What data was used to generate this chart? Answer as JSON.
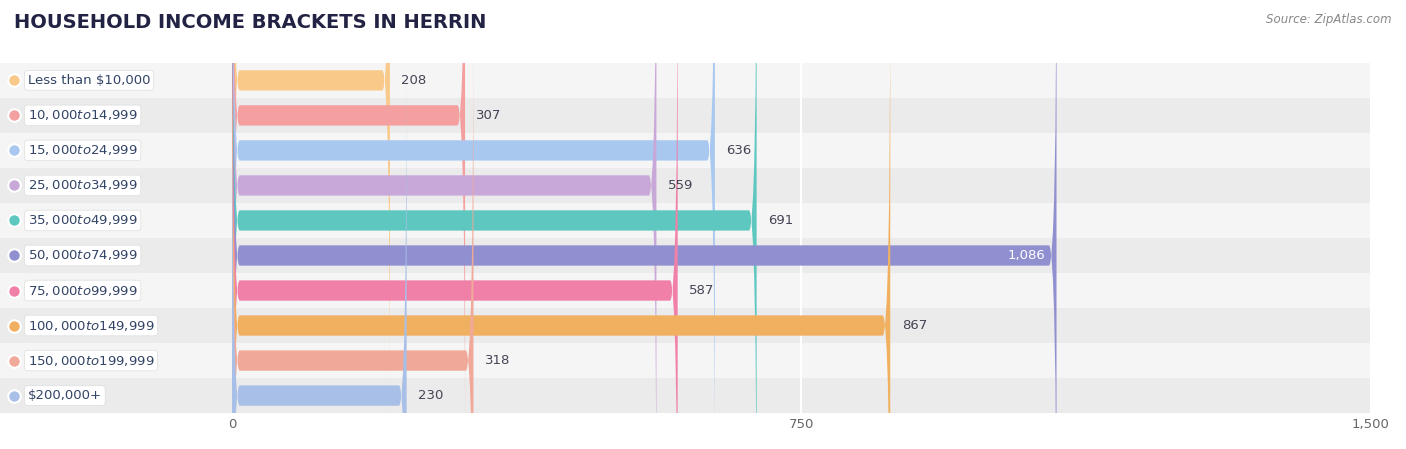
{
  "title": "HOUSEHOLD INCOME BRACKETS IN HERRIN",
  "source": "Source: ZipAtlas.com",
  "categories": [
    "Less than $10,000",
    "$10,000 to $14,999",
    "$15,000 to $24,999",
    "$25,000 to $34,999",
    "$35,000 to $49,999",
    "$50,000 to $74,999",
    "$75,000 to $99,999",
    "$100,000 to $149,999",
    "$150,000 to $199,999",
    "$200,000+"
  ],
  "values": [
    208,
    307,
    636,
    559,
    691,
    1086,
    587,
    867,
    318,
    230
  ],
  "bar_colors": [
    "#f9c98a",
    "#f4a0a0",
    "#a8c8f0",
    "#c8a8d8",
    "#5ec8c0",
    "#9090d0",
    "#f080a8",
    "#f0b060",
    "#f0a898",
    "#a8c0e8"
  ],
  "row_bg_odd": "#f5f5f5",
  "row_bg_even": "#ebebeb",
  "bar_bg_color": "#e0e0e0",
  "xlim_data": [
    0,
    1500
  ],
  "xticks": [
    0,
    750,
    1500
  ],
  "title_fontsize": 14,
  "label_fontsize": 9.5,
  "value_fontsize": 9.5,
  "bar_height": 0.58,
  "label_color": "#334466"
}
